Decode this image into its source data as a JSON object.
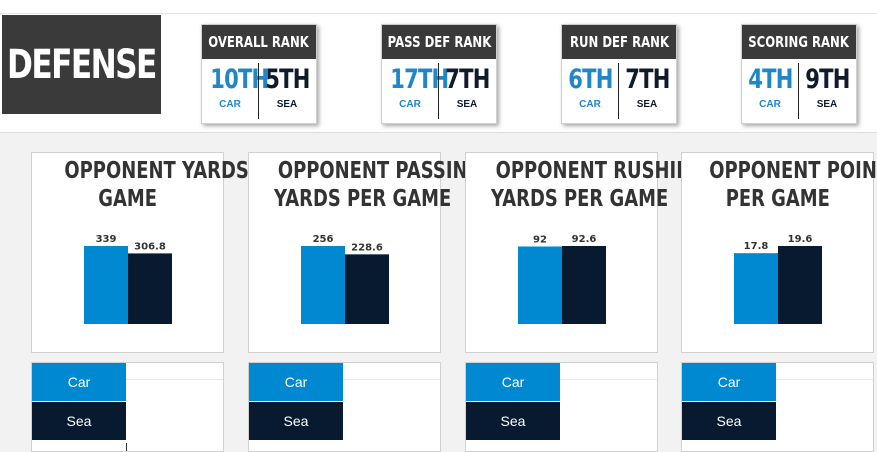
{
  "section": {
    "title": "DEFENSE"
  },
  "colors": {
    "car": "#0089d0",
    "sea": "#071a30",
    "dark": "#3a3a3a",
    "car_text": "#1f86c8"
  },
  "ranks": [
    {
      "label": "OVERALL RANK",
      "car_value": "10TH",
      "sea_value": "5TH",
      "car_team": "CAR",
      "sea_team": "SEA"
    },
    {
      "label": "PASS DEF RANK",
      "car_value": "17TH",
      "sea_value": "7TH",
      "car_team": "CAR",
      "sea_team": "SEA"
    },
    {
      "label": "RUN DEF RANK",
      "car_value": "6TH",
      "sea_value": "7TH",
      "car_team": "CAR",
      "sea_team": "SEA"
    },
    {
      "label": "SCORING RANK",
      "car_value": "4TH",
      "sea_value": "9TH",
      "car_team": "CAR",
      "sea_team": "SEA"
    }
  ],
  "chart_data": [
    {
      "type": "bar",
      "title_lines": [
        "OPPONENT YARDS PER",
        "GAME"
      ],
      "categories": [
        "Car",
        "Sea"
      ],
      "values": [
        339,
        306.8
      ],
      "labels": [
        "339",
        "306.8"
      ]
    },
    {
      "type": "bar",
      "title_lines": [
        "OPPONENT PASSING",
        "YARDS PER GAME"
      ],
      "categories": [
        "Car",
        "Sea"
      ],
      "values": [
        256,
        228.6
      ],
      "labels": [
        "256",
        "228.6"
      ]
    },
    {
      "type": "bar",
      "title_lines": [
        "OPPONENT RUSHING",
        "YARDS PER GAME"
      ],
      "categories": [
        "Car",
        "Sea"
      ],
      "values": [
        92,
        92.6
      ],
      "labels": [
        "92",
        "92.6"
      ]
    },
    {
      "type": "bar",
      "title_lines": [
        "OPPONENT POINTS",
        "PER GAME"
      ],
      "categories": [
        "Car",
        "Sea"
      ],
      "values": [
        17.8,
        19.6
      ],
      "labels": [
        "17.8",
        "19.6"
      ]
    }
  ],
  "legend": {
    "car": "Car",
    "sea": "Sea"
  }
}
